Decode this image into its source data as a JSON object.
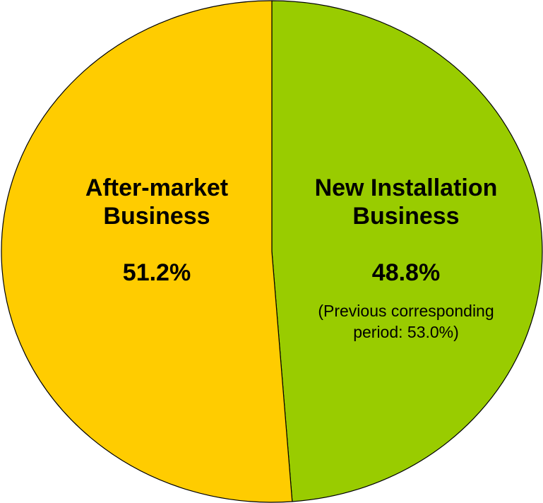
{
  "chart_data": {
    "type": "pie",
    "categories": [
      "New Installation Business",
      "After-market Business"
    ],
    "values": [
      48.8,
      51.2
    ],
    "value_labels": [
      "48.8%",
      "51.2%"
    ],
    "colors": [
      "#99cc00",
      "#ffcc00"
    ],
    "annotation": "(Previous corresponding period: 53.0%)"
  }
}
